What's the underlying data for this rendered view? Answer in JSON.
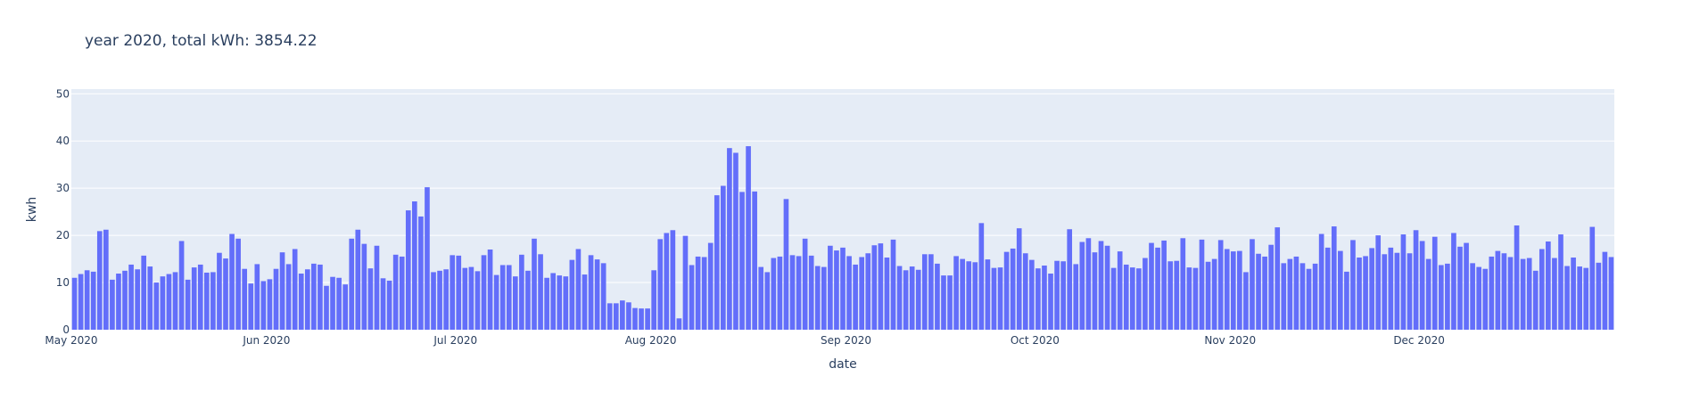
{
  "chart_data": {
    "type": "bar",
    "title": "year 2020, total kWh: 3854.22",
    "xlabel": "date",
    "ylabel": "kwh",
    "x_start": "2020-05-01",
    "x_ticks": [
      "May 2020",
      "Jun 2020",
      "Jul 2020",
      "Aug 2020",
      "Sep 2020",
      "Oct 2020",
      "Nov 2020",
      "Dec 2020"
    ],
    "x_tick_dates": [
      "2020-05-01",
      "2020-06-01",
      "2020-07-01",
      "2020-08-01",
      "2020-09-01",
      "2020-10-01",
      "2020-11-01",
      "2020-12-01"
    ],
    "y_ticks": [
      0,
      10,
      20,
      30,
      40,
      50
    ],
    "ylim": [
      0,
      51
    ],
    "grid": true,
    "colors": {
      "bar": "#636efa",
      "plot_bg": "#e5ecf6",
      "grid": "#ffffff",
      "text": "#2a3f5f"
    },
    "values": [
      11,
      11.8,
      12.6,
      12.3,
      20.9,
      21.2,
      10.6,
      11.9,
      12.5,
      13.8,
      12.8,
      15.7,
      13.4,
      10.0,
      11.3,
      11.8,
      12.2,
      18.8,
      10.6,
      13.2,
      13.8,
      12.1,
      12.2,
      16.3,
      15.1,
      20.3,
      19.3,
      12.9,
      9.8,
      13.9,
      10.3,
      10.7,
      12.9,
      16.4,
      13.9,
      17.1,
      11.9,
      12.8,
      14.0,
      13.8,
      9.3,
      11.2,
      11.0,
      9.6,
      19.3,
      21.2,
      18.2,
      13.0,
      17.8,
      10.9,
      10.4,
      15.9,
      15.5,
      25.3,
      27.2,
      24.0,
      30.2,
      12.2,
      12.5,
      12.8,
      15.8,
      15.7,
      13.1,
      13.3,
      12.4,
      15.8,
      17.0,
      11.6,
      13.7,
      13.7,
      11.3,
      15.9,
      12.5,
      19.3,
      16.0,
      11.0,
      12.0,
      11.5,
      11.3,
      14.8,
      17.1,
      11.7,
      15.8,
      14.9,
      14.1,
      5.6,
      5.6,
      6.2,
      5.8,
      4.6,
      4.5,
      4.5,
      12.6,
      19.2,
      20.5,
      21.1,
      2.4,
      19.9,
      13.7,
      15.5,
      15.4,
      18.4,
      28.5,
      30.5,
      38.5,
      37.5,
      29.2,
      38.9,
      29.3,
      13.3,
      12.2,
      15.2,
      15.5,
      27.7,
      15.8,
      15.6,
      19.3,
      15.7,
      13.5,
      13.3,
      17.8,
      16.8,
      17.4,
      15.6,
      13.8,
      15.4,
      16.2,
      17.9,
      18.3,
      15.3,
      19.1,
      13.5,
      12.6,
      13.4,
      12.7,
      16.0,
      16.0,
      14.0,
      11.5,
      11.5,
      15.6,
      15.0,
      14.5,
      14.3,
      22.6,
      14.9,
      13.1,
      13.2,
      16.5,
      17.2,
      21.5,
      16.2,
      14.8,
      13.0,
      13.6,
      11.9,
      14.6,
      14.5,
      21.3,
      13.9,
      18.6,
      19.4,
      16.4,
      18.8,
      17.8,
      13.1,
      16.6,
      13.8,
      13.2,
      13.0,
      15.2,
      18.4,
      17.4,
      18.9,
      14.5,
      14.6,
      19.4,
      13.2,
      13.1,
      19.1,
      14.4,
      15.0,
      19.0,
      17.1,
      16.6,
      16.7,
      12.2,
      19.2,
      16.1,
      15.5,
      18.0,
      21.7,
      14.1,
      15.0,
      15.5,
      14.1,
      12.9,
      14.0,
      20.3,
      17.4,
      21.9,
      16.7,
      12.3,
      19.0,
      15.3,
      15.6,
      17.3,
      20.0,
      16.0,
      17.4,
      16.3,
      20.2,
      16.2,
      21.1,
      18.8,
      15.0,
      19.7,
      13.7,
      14.0,
      20.5,
      17.6,
      18.4,
      14.1,
      13.3,
      12.9,
      15.5,
      16.7,
      16.2,
      15.4,
      22.1,
      15.0,
      15.2,
      12.5,
      17.1,
      18.7,
      15.2,
      20.2,
      13.5,
      15.3,
      13.4,
      13.1,
      21.8,
      14.2,
      16.5,
      15.4
    ]
  }
}
